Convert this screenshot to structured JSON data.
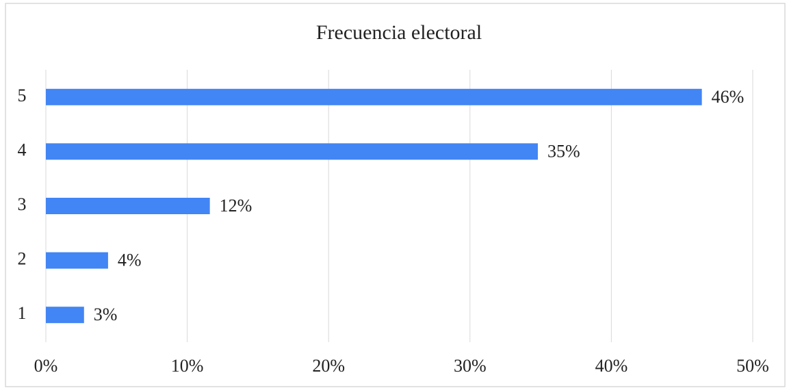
{
  "chart_data": {
    "type": "bar",
    "orientation": "horizontal",
    "title": "Frecuencia electoral",
    "categories": [
      "1",
      "2",
      "3",
      "4",
      "5"
    ],
    "values": [
      2.7,
      4.4,
      11.6,
      34.8,
      46.4
    ],
    "value_labels": [
      "3%",
      "4%",
      "12%",
      "35%",
      "46%"
    ],
    "color": "#4285f4",
    "xlim": [
      0,
      50
    ],
    "xticks": [
      {
        "value": 0,
        "label": "0%"
      },
      {
        "value": 10,
        "label": "10%"
      },
      {
        "value": 20,
        "label": "20%"
      },
      {
        "value": 30,
        "label": "30%"
      },
      {
        "value": 40,
        "label": "40%"
      },
      {
        "value": 50,
        "label": "50%"
      }
    ],
    "grid": true
  }
}
